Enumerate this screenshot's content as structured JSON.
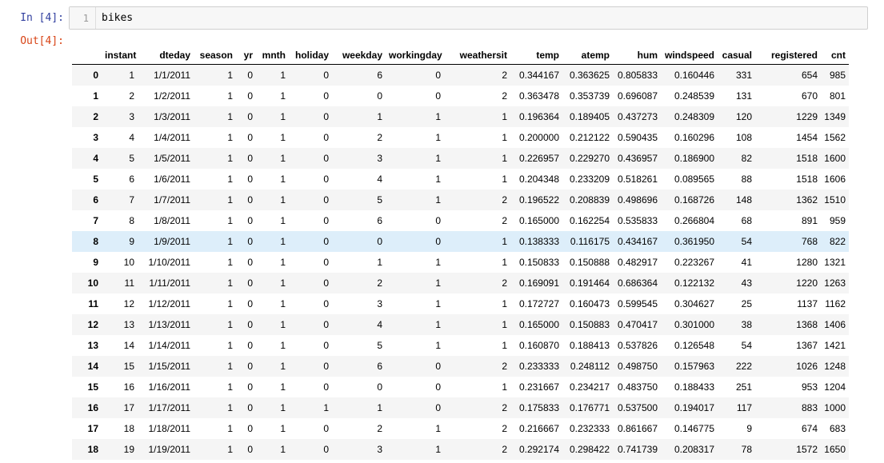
{
  "notebook": {
    "in_prompt": "In [4]:",
    "out_prompt": "Out[4]:",
    "line_number": "1",
    "code": "bikes"
  },
  "dataframe": {
    "columns": [
      "instant",
      "dteday",
      "season",
      "yr",
      "mnth",
      "holiday",
      "weekday",
      "workingday",
      "weathersit",
      "temp",
      "atemp",
      "hum",
      "windspeed",
      "casual",
      "registered",
      "cnt"
    ],
    "highlighted_row": 8,
    "rows": [
      {
        "index": "0",
        "cells": [
          "1",
          "1/1/2011",
          "1",
          "0",
          "1",
          "0",
          "6",
          "0",
          "2",
          "0.344167",
          "0.363625",
          "0.805833",
          "0.160446",
          "331",
          "654",
          "985"
        ]
      },
      {
        "index": "1",
        "cells": [
          "2",
          "1/2/2011",
          "1",
          "0",
          "1",
          "0",
          "0",
          "0",
          "2",
          "0.363478",
          "0.353739",
          "0.696087",
          "0.248539",
          "131",
          "670",
          "801"
        ]
      },
      {
        "index": "2",
        "cells": [
          "3",
          "1/3/2011",
          "1",
          "0",
          "1",
          "0",
          "1",
          "1",
          "1",
          "0.196364",
          "0.189405",
          "0.437273",
          "0.248309",
          "120",
          "1229",
          "1349"
        ]
      },
      {
        "index": "3",
        "cells": [
          "4",
          "1/4/2011",
          "1",
          "0",
          "1",
          "0",
          "2",
          "1",
          "1",
          "0.200000",
          "0.212122",
          "0.590435",
          "0.160296",
          "108",
          "1454",
          "1562"
        ]
      },
      {
        "index": "4",
        "cells": [
          "5",
          "1/5/2011",
          "1",
          "0",
          "1",
          "0",
          "3",
          "1",
          "1",
          "0.226957",
          "0.229270",
          "0.436957",
          "0.186900",
          "82",
          "1518",
          "1600"
        ]
      },
      {
        "index": "5",
        "cells": [
          "6",
          "1/6/2011",
          "1",
          "0",
          "1",
          "0",
          "4",
          "1",
          "1",
          "0.204348",
          "0.233209",
          "0.518261",
          "0.089565",
          "88",
          "1518",
          "1606"
        ]
      },
      {
        "index": "6",
        "cells": [
          "7",
          "1/7/2011",
          "1",
          "0",
          "1",
          "0",
          "5",
          "1",
          "2",
          "0.196522",
          "0.208839",
          "0.498696",
          "0.168726",
          "148",
          "1362",
          "1510"
        ]
      },
      {
        "index": "7",
        "cells": [
          "8",
          "1/8/2011",
          "1",
          "0",
          "1",
          "0",
          "6",
          "0",
          "2",
          "0.165000",
          "0.162254",
          "0.535833",
          "0.266804",
          "68",
          "891",
          "959"
        ]
      },
      {
        "index": "8",
        "cells": [
          "9",
          "1/9/2011",
          "1",
          "0",
          "1",
          "0",
          "0",
          "0",
          "1",
          "0.138333",
          "0.116175",
          "0.434167",
          "0.361950",
          "54",
          "768",
          "822"
        ]
      },
      {
        "index": "9",
        "cells": [
          "10",
          "1/10/2011",
          "1",
          "0",
          "1",
          "0",
          "1",
          "1",
          "1",
          "0.150833",
          "0.150888",
          "0.482917",
          "0.223267",
          "41",
          "1280",
          "1321"
        ]
      },
      {
        "index": "10",
        "cells": [
          "11",
          "1/11/2011",
          "1",
          "0",
          "1",
          "0",
          "2",
          "1",
          "2",
          "0.169091",
          "0.191464",
          "0.686364",
          "0.122132",
          "43",
          "1220",
          "1263"
        ]
      },
      {
        "index": "11",
        "cells": [
          "12",
          "1/12/2011",
          "1",
          "0",
          "1",
          "0",
          "3",
          "1",
          "1",
          "0.172727",
          "0.160473",
          "0.599545",
          "0.304627",
          "25",
          "1137",
          "1162"
        ]
      },
      {
        "index": "12",
        "cells": [
          "13",
          "1/13/2011",
          "1",
          "0",
          "1",
          "0",
          "4",
          "1",
          "1",
          "0.165000",
          "0.150883",
          "0.470417",
          "0.301000",
          "38",
          "1368",
          "1406"
        ]
      },
      {
        "index": "13",
        "cells": [
          "14",
          "1/14/2011",
          "1",
          "0",
          "1",
          "0",
          "5",
          "1",
          "1",
          "0.160870",
          "0.188413",
          "0.537826",
          "0.126548",
          "54",
          "1367",
          "1421"
        ]
      },
      {
        "index": "14",
        "cells": [
          "15",
          "1/15/2011",
          "1",
          "0",
          "1",
          "0",
          "6",
          "0",
          "2",
          "0.233333",
          "0.248112",
          "0.498750",
          "0.157963",
          "222",
          "1026",
          "1248"
        ]
      },
      {
        "index": "15",
        "cells": [
          "16",
          "1/16/2011",
          "1",
          "0",
          "1",
          "0",
          "0",
          "0",
          "1",
          "0.231667",
          "0.234217",
          "0.483750",
          "0.188433",
          "251",
          "953",
          "1204"
        ]
      },
      {
        "index": "16",
        "cells": [
          "17",
          "1/17/2011",
          "1",
          "0",
          "1",
          "1",
          "1",
          "0",
          "2",
          "0.175833",
          "0.176771",
          "0.537500",
          "0.194017",
          "117",
          "883",
          "1000"
        ]
      },
      {
        "index": "17",
        "cells": [
          "18",
          "1/18/2011",
          "1",
          "0",
          "1",
          "0",
          "2",
          "1",
          "2",
          "0.216667",
          "0.232333",
          "0.861667",
          "0.146775",
          "9",
          "674",
          "683"
        ]
      },
      {
        "index": "18",
        "cells": [
          "19",
          "1/19/2011",
          "1",
          "0",
          "1",
          "0",
          "3",
          "1",
          "2",
          "0.292174",
          "0.298422",
          "0.741739",
          "0.208317",
          "78",
          "1572",
          "1650"
        ]
      }
    ]
  }
}
